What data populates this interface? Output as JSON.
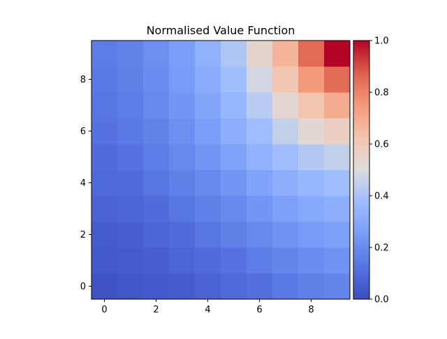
{
  "chart_data": {
    "type": "heatmap",
    "title": "Normalised Value Function",
    "xlabel": "",
    "ylabel": "",
    "x_ticks": [
      "0",
      "2",
      "4",
      "6",
      "8"
    ],
    "y_ticks": [
      "0",
      "2",
      "4",
      "6",
      "8"
    ],
    "x_tick_values": [
      0,
      2,
      4,
      6,
      8
    ],
    "y_tick_values": [
      0,
      2,
      4,
      6,
      8
    ],
    "xlim": [
      -0.5,
      9.5
    ],
    "ylim": [
      -0.5,
      9.5
    ],
    "colormap": "coolwarm",
    "colorbar": {
      "range": [
        0.0,
        1.0
      ],
      "ticks": [
        "0.0",
        "0.2",
        "0.4",
        "0.6",
        "0.8",
        "1.0"
      ],
      "tick_values": [
        0.0,
        0.2,
        0.4,
        0.6,
        0.8,
        1.0
      ]
    },
    "rows_from_bottom": [
      [
        0.02,
        0.03,
        0.04,
        0.05,
        0.07,
        0.09,
        0.11,
        0.14,
        0.16,
        0.18
      ],
      [
        0.04,
        0.05,
        0.06,
        0.08,
        0.1,
        0.12,
        0.15,
        0.18,
        0.2,
        0.22
      ],
      [
        0.05,
        0.06,
        0.08,
        0.1,
        0.13,
        0.16,
        0.19,
        0.22,
        0.25,
        0.27
      ],
      [
        0.07,
        0.08,
        0.1,
        0.13,
        0.16,
        0.19,
        0.23,
        0.27,
        0.3,
        0.32
      ],
      [
        0.09,
        0.1,
        0.13,
        0.16,
        0.19,
        0.23,
        0.28,
        0.32,
        0.35,
        0.38
      ],
      [
        0.1,
        0.12,
        0.15,
        0.19,
        0.23,
        0.28,
        0.33,
        0.38,
        0.42,
        0.45
      ],
      [
        0.12,
        0.14,
        0.17,
        0.21,
        0.26,
        0.32,
        0.38,
        0.45,
        0.52,
        0.57
      ],
      [
        0.13,
        0.15,
        0.19,
        0.23,
        0.29,
        0.35,
        0.43,
        0.53,
        0.62,
        0.7
      ],
      [
        0.14,
        0.16,
        0.2,
        0.25,
        0.31,
        0.38,
        0.48,
        0.61,
        0.75,
        0.85
      ],
      [
        0.15,
        0.17,
        0.21,
        0.26,
        0.33,
        0.41,
        0.54,
        0.67,
        0.85,
        1.0
      ]
    ]
  }
}
